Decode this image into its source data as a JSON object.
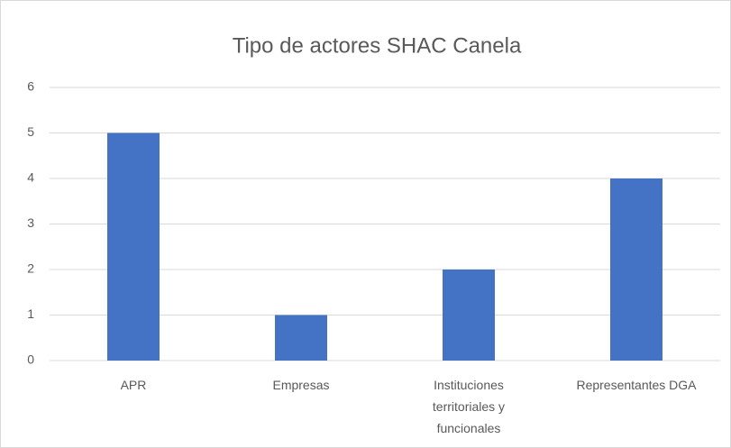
{
  "chart_data": {
    "type": "bar",
    "title": "Tipo de actores SHAC Canela",
    "categories": [
      "APR",
      "Empresas",
      "Instituciones territoriales y funcionales",
      "Representantes DGA"
    ],
    "values": [
      5,
      1,
      2,
      4
    ],
    "color": "#4472c4",
    "ylim": [
      0,
      6
    ],
    "yticks": [
      0,
      1,
      2,
      3,
      4,
      5,
      6
    ],
    "grid": true
  }
}
